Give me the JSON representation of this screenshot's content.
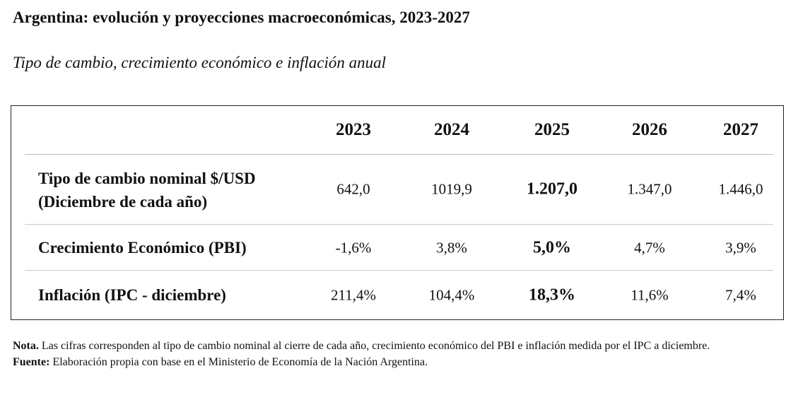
{
  "title": "Argentina: evolución y proyecciones macroeconómicas, 2023-2027",
  "subtitle": "Tipo de cambio, crecimiento económico e inflación anual",
  "table": {
    "years": [
      "2023",
      "2024",
      "2025",
      "2026",
      "2027"
    ],
    "highlight_year": "2025",
    "rows": [
      {
        "label_line1": "Tipo de cambio nominal $/USD",
        "label_line2": "(Diciembre de cada año)",
        "values": [
          "642,0",
          "1019,9",
          "1.207,0",
          "1.347,0",
          "1.446,0"
        ]
      },
      {
        "label_line1": "Crecimiento Económico (PBI)",
        "values": [
          "-1,6%",
          "3,8%",
          "5,0%",
          "4,7%",
          "3,9%"
        ]
      },
      {
        "label_line1": "Inflación (IPC - diciembre)",
        "values": [
          "211,4%",
          "104,4%",
          "18,3%",
          "11,6%",
          "7,4%"
        ]
      }
    ]
  },
  "note": {
    "nota_label": "Nota.",
    "nota_text": " Las cifras corresponden al tipo de cambio nominal al cierre de cada año, crecimiento económico del PBI e inflación medida por el IPC a diciembre.",
    "fuente_label": "Fuente:",
    "fuente_text": " Elaboración propia con base en el Ministerio de Economía de la Nación Argentina."
  }
}
